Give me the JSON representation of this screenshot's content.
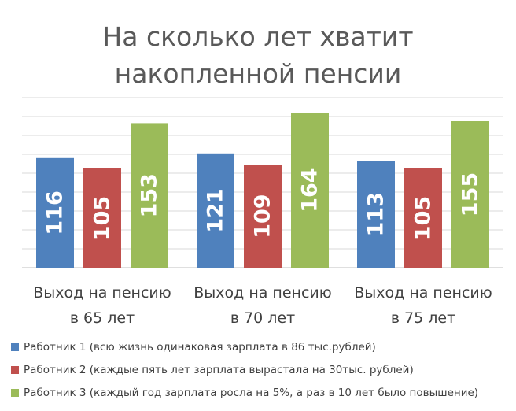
{
  "chart_data": {
    "type": "bar",
    "title": [
      "На сколько лет хватит",
      "накопленной пенсии"
    ],
    "categories": [
      [
        "Выход на пенсию",
        "в 65 лет"
      ],
      [
        "Выход на пенсию",
        "в 70 лет"
      ],
      [
        "Выход на пенсию",
        "в 75 лет"
      ]
    ],
    "series": [
      {
        "name": "Работник 1 (всю жизнь одинаковая зарплата в 86 тыс.рублей)",
        "values": [
          116,
          121,
          113
        ],
        "color": "#4f81bd"
      },
      {
        "name": "Работник 2 (каждые пять лет зарплата вырастала на 30тыс. рублей)",
        "values": [
          105,
          109,
          105
        ],
        "color": "#c0504d"
      },
      {
        "name": "Работник 3 (каждый год зарплата росла на 5%, а раз в 10 лет было повышение)",
        "values": [
          153,
          164,
          155
        ],
        "color": "#9bbb59"
      }
    ],
    "ylim": [
      0,
      180
    ],
    "grid": true,
    "legend_position": "bottom",
    "data_labels": "inside-rotated"
  }
}
